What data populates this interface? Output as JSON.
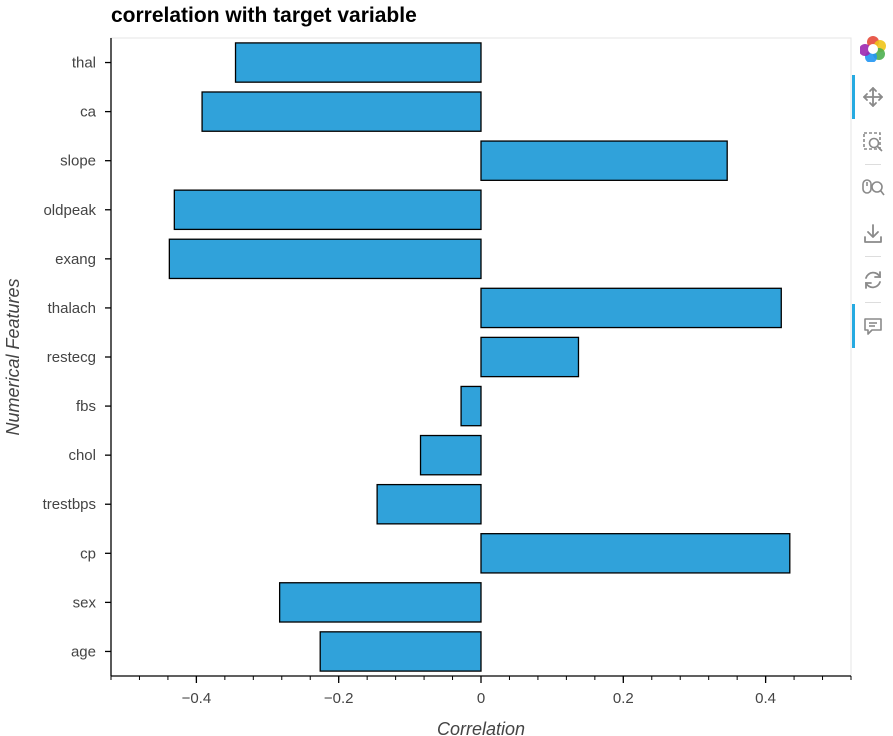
{
  "chart_data": {
    "type": "bar",
    "orientation": "horizontal",
    "title": "correlation with target variable",
    "xlabel": "Correlation",
    "ylabel": "Numerical Features",
    "xlim": [
      -0.52,
      0.52
    ],
    "x_ticks": [
      -0.4,
      -0.2,
      0,
      0.2,
      0.4
    ],
    "x_tick_labels": [
      "−0.4",
      "−0.2",
      "0",
      "0.2",
      "0.4"
    ],
    "categories": [
      "age",
      "sex",
      "cp",
      "trestbps",
      "chol",
      "fbs",
      "restecg",
      "thalach",
      "exang",
      "oldpeak",
      "slope",
      "ca",
      "thal"
    ],
    "values": [
      -0.226,
      -0.283,
      0.434,
      -0.146,
      -0.085,
      -0.028,
      0.137,
      0.422,
      -0.438,
      -0.431,
      0.346,
      -0.392,
      -0.345
    ],
    "bar_color": "#30a2da",
    "bar_edge_color": "#000000",
    "grid": false,
    "legend": "none"
  },
  "toolbar": {
    "tools": [
      "bokeh-logo-icon",
      "pan-icon",
      "box-zoom-icon",
      "wheel-zoom-icon",
      "save-icon",
      "reset-icon",
      "hover-icon"
    ]
  }
}
